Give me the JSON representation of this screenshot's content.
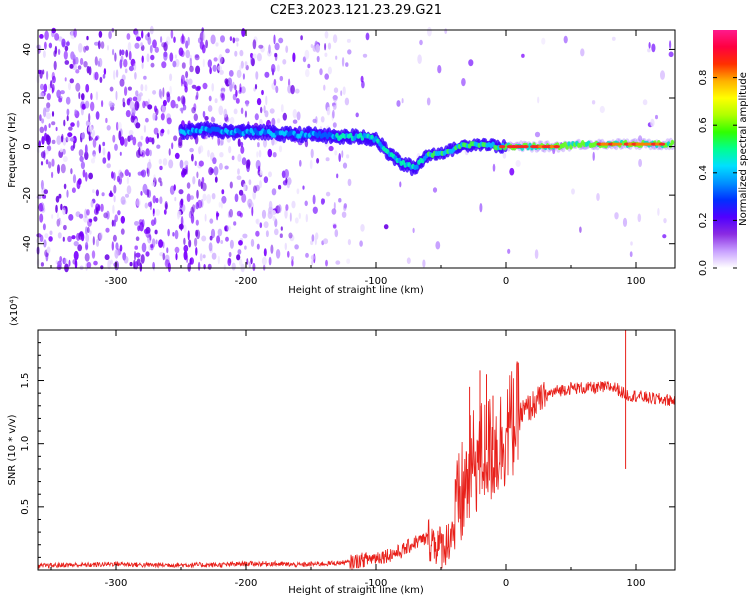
{
  "title": "C2E3.2023.121.23.29.G21",
  "chart_data": [
    {
      "type": "heatmap",
      "xlabel": "Height of straight line (km)",
      "ylabel": "Frequency (Hz)",
      "xlim": [
        -360,
        130
      ],
      "ylim": [
        -50,
        48
      ],
      "xticks": [
        -300,
        -200,
        -100,
        0,
        100
      ],
      "yticks": [
        -40,
        -20,
        0,
        20,
        40
      ],
      "colorbar": {
        "label": "Normalized spectral amplitude",
        "range": [
          0.0,
          1.0
        ],
        "ticks": [
          0.0,
          0.2,
          0.4,
          0.6,
          0.8
        ],
        "colormap": [
          "#ffffff",
          "#d9b3ff",
          "#8a2be2",
          "#3000ff",
          "#0080ff",
          "#00e5ff",
          "#00ff80",
          "#40ff00",
          "#ffff00",
          "#ff8000",
          "#ff0000",
          "#ff1493"
        ]
      },
      "ridge": {
        "x": [
          -250,
          -230,
          -210,
          -190,
          -170,
          -150,
          -130,
          -110,
          -100,
          -90,
          -80,
          -70,
          -62,
          -55,
          -45,
          -35,
          -25,
          -15,
          -5,
          0,
          20,
          40,
          60,
          80,
          100,
          120,
          130
        ],
        "y": [
          6,
          7,
          6,
          6,
          5,
          5,
          4,
          4,
          3,
          -3,
          -7,
          -9,
          -4,
          -3,
          -2,
          0,
          1,
          1,
          0,
          0,
          0,
          0,
          1,
          1,
          1,
          1,
          1
        ]
      }
    },
    {
      "type": "line",
      "xlabel": "Height of straight line (km)",
      "ylabel": "SNR (10 * v/v)",
      "y_multiplier": "(x10⁴)",
      "xlim": [
        -360,
        130
      ],
      "ylim": [
        0,
        1.9
      ],
      "xticks": [
        -300,
        -200,
        -100,
        0,
        100
      ],
      "yticks": [
        0.5,
        1.0,
        1.5
      ],
      "ytick_labels": [
        "0.5",
        "1.0",
        "1.5"
      ],
      "series": [
        {
          "color": "#e8201a",
          "x": [
            -360,
            -340,
            -320,
            -300,
            -280,
            -260,
            -240,
            -220,
            -200,
            -180,
            -160,
            -140,
            -120,
            -110,
            -100,
            -90,
            -80,
            -70,
            -60,
            -55,
            -50,
            -45,
            -40,
            -35,
            -30,
            -25,
            -20,
            -15,
            -10,
            -5,
            0,
            10,
            20,
            30,
            40,
            50,
            60,
            70,
            80,
            85,
            90,
            95,
            100,
            110,
            120,
            130
          ],
          "y": [
            0.03,
            0.04,
            0.04,
            0.05,
            0.04,
            0.04,
            0.04,
            0.04,
            0.05,
            0.05,
            0.04,
            0.05,
            0.06,
            0.08,
            0.1,
            0.12,
            0.15,
            0.22,
            0.25,
            0.22,
            0.18,
            0.22,
            0.35,
            0.55,
            0.7,
            0.85,
            0.9,
            0.95,
            0.95,
            1.0,
            1.1,
            1.22,
            1.3,
            1.38,
            1.42,
            1.44,
            1.44,
            1.44,
            1.45,
            1.44,
            1.4,
            1.38,
            1.38,
            1.36,
            1.35,
            1.34
          ]
        }
      ],
      "spikes": [
        {
          "x": -28,
          "y": 1.45
        },
        {
          "x": -20,
          "y": 1.58
        },
        {
          "x": -15,
          "y": 1.55
        },
        {
          "x": -10,
          "y": 1.38
        },
        {
          "x": 92,
          "y": 1.92
        },
        {
          "x": 92,
          "y": 0.8
        }
      ]
    }
  ]
}
